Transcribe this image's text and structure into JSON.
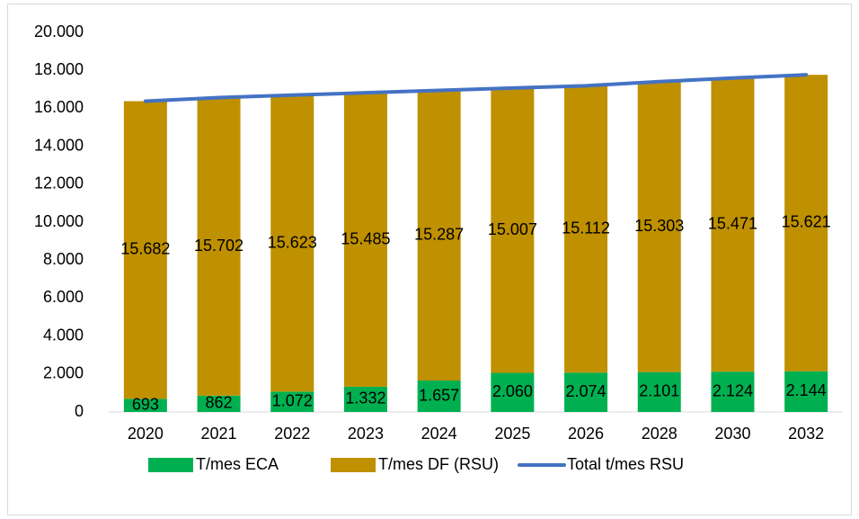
{
  "chart_data": {
    "type": "stacked-bar-line",
    "categories": [
      "2020",
      "2021",
      "2022",
      "2023",
      "2024",
      "2025",
      "2026",
      "2028",
      "2030",
      "2032"
    ],
    "series": [
      {
        "name": "T/mes ECA",
        "color": "#00b050",
        "kind": "bar",
        "values": [
          693,
          862,
          1072,
          1332,
          1657,
          2060,
          2074,
          2101,
          2124,
          2144
        ],
        "value_labels": [
          "693",
          "862",
          "1.072",
          "1.332",
          "1.657",
          "2.060",
          "2.074",
          "2.101",
          "2.124",
          "2.144"
        ]
      },
      {
        "name": "T/mes DF (RSU)",
        "color": "#bf9000",
        "kind": "bar",
        "values": [
          15682,
          15702,
          15623,
          15485,
          15287,
          15007,
          15112,
          15303,
          15471,
          15621
        ],
        "value_labels": [
          "15.682",
          "15.702",
          "15.623",
          "15.485",
          "15.287",
          "15.007",
          "15.112",
          "15.303",
          "15.471",
          "15.621"
        ]
      },
      {
        "name": "Total t/mes RSU",
        "color": "#4472c4",
        "kind": "line",
        "values": [
          16375,
          16564,
          16695,
          16817,
          16944,
          17067,
          17186,
          17404,
          17595,
          17765
        ]
      }
    ],
    "ylim": [
      0,
      20000
    ],
    "yticks": [
      0,
      {
        "value": 2000,
        "label": "2.000"
      },
      {
        "value": 4000,
        "label": "4.000"
      },
      {
        "value": 6000,
        "label": "6.000"
      },
      {
        "value": 8000,
        "label": "8.000"
      },
      {
        "value": 10000,
        "label": "10.000"
      },
      {
        "value": 12000,
        "label": "12.000"
      },
      {
        "value": 14000,
        "label": "14.000"
      },
      {
        "value": 16000,
        "label": "16.000"
      },
      {
        "value": 18000,
        "label": "18.000"
      },
      {
        "value": 20000,
        "label": "20.000"
      }
    ],
    "grid": false,
    "legend": "bottom"
  }
}
